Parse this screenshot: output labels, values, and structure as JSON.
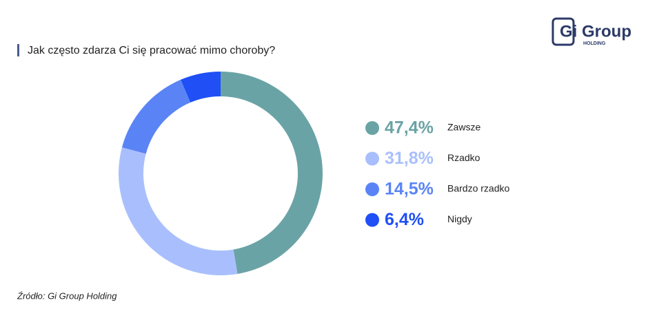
{
  "chart_data": {
    "type": "donut",
    "title": "Jak często zdarza Ci się pracować mimo choroby?",
    "categories": [
      "Zawsze",
      "Rzadko",
      "Bardzo rzadko",
      "Nigdy"
    ],
    "values": [
      47.4,
      31.8,
      14.5,
      6.4
    ],
    "value_labels": [
      "47,4%",
      "31,8%",
      "14,5%",
      "6,4%"
    ],
    "colors": [
      "#6aa3a6",
      "#a9bffd",
      "#5a84f6",
      "#1f4ff5"
    ],
    "source": "Źródło: Gi Group Holding",
    "logo": {
      "text": "Gi Group",
      "subtext": "HOLDING"
    }
  }
}
